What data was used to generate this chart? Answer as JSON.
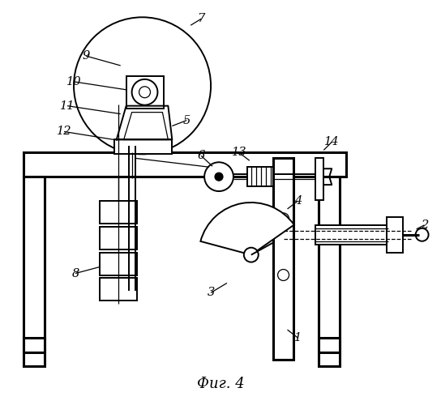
{
  "bg_color": "#ffffff",
  "line_color": "#000000",
  "fig_caption": "Фиг. 4",
  "label_fontsize": 10.5,
  "caption_fontsize": 13
}
